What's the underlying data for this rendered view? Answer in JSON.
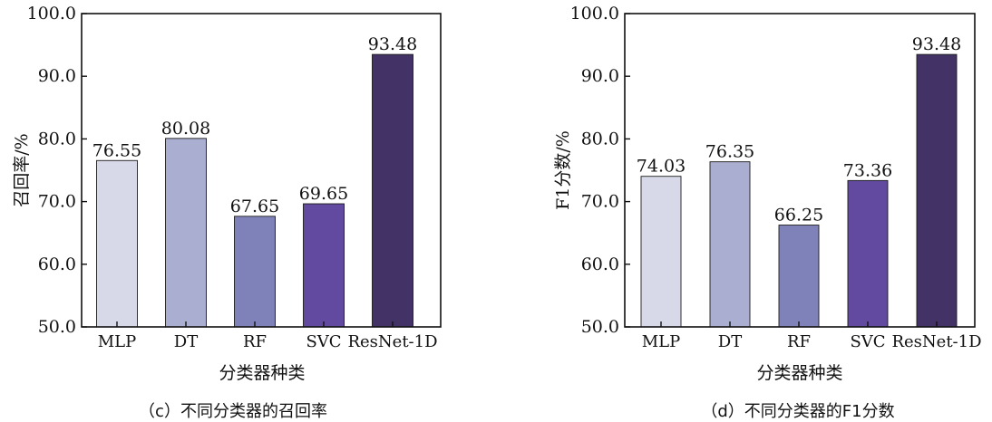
{
  "chart_data": [
    {
      "type": "bar",
      "caption": "（c）不同分类器的召回率",
      "categories": [
        "MLP",
        "DT",
        "RF",
        "SVC",
        "ResNet-1D"
      ],
      "values": [
        76.55,
        80.08,
        67.65,
        69.65,
        93.48
      ],
      "value_labels": [
        "76.55",
        "80.08",
        "67.65",
        "69.65",
        "93.48"
      ],
      "xlabel": "分类器种类",
      "ylabel": "召回率/%",
      "ylim": [
        50,
        100
      ],
      "yticks": [
        "50.0",
        "60.0",
        "70.0",
        "80.0",
        "90.0",
        "100.0"
      ],
      "colors": [
        "#d8d9e8",
        "#aaaed0",
        "#7f82b8",
        "#614aa0",
        "#433266"
      ],
      "grid": false
    },
    {
      "type": "bar",
      "caption": "（d）不同分类器的F1分数",
      "categories": [
        "MLP",
        "DT",
        "RF",
        "SVC",
        "ResNet-1D"
      ],
      "values": [
        74.03,
        76.35,
        66.25,
        73.36,
        93.48
      ],
      "value_labels": [
        "74.03",
        "76.35",
        "66.25",
        "73.36",
        "93.48"
      ],
      "xlabel": "分类器种类",
      "ylabel": "F1分数/%",
      "ylim": [
        50,
        100
      ],
      "yticks": [
        "50.0",
        "60.0",
        "70.0",
        "80.0",
        "90.0",
        "100.0"
      ],
      "colors": [
        "#d8d9e8",
        "#aaaed0",
        "#7f82b8",
        "#614aa0",
        "#433266"
      ],
      "grid": false
    }
  ]
}
